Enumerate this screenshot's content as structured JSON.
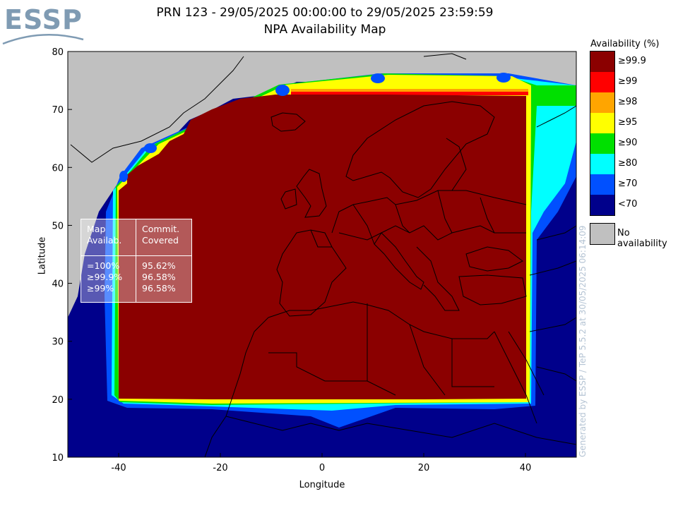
{
  "logo": {
    "text": "ESSP",
    "icon": "essp-logo-swoosh"
  },
  "title": {
    "line1": "PRN 123 - 29/05/2025 00:00:00 to 29/05/2025 23:59:59",
    "line2": "NPA Availability Map"
  },
  "axes": {
    "xlabel": "Longitude",
    "ylabel": "Latitude",
    "xlim": [
      -50,
      50
    ],
    "ylim": [
      10,
      80
    ],
    "xticks": [
      {
        "value": -40,
        "label": "-40"
      },
      {
        "value": -20,
        "label": "-20"
      },
      {
        "value": 0,
        "label": "0"
      },
      {
        "value": 20,
        "label": "20"
      },
      {
        "value": 40,
        "label": "40"
      }
    ],
    "yticks": [
      {
        "value": 10,
        "label": "10"
      },
      {
        "value": 20,
        "label": "20"
      },
      {
        "value": 30,
        "label": "30"
      },
      {
        "value": 40,
        "label": "40"
      },
      {
        "value": 50,
        "label": "50"
      },
      {
        "value": 60,
        "label": "60"
      },
      {
        "value": 70,
        "label": "70"
      },
      {
        "value": 80,
        "label": "80"
      }
    ]
  },
  "legend": {
    "title": "Availability (%)",
    "items": [
      {
        "label": "≥99.9",
        "color": "#8b0000"
      },
      {
        "label": "≥99",
        "color": "#ff0000"
      },
      {
        "label": "≥98",
        "color": "#ffa500"
      },
      {
        "label": "≥95",
        "color": "#ffff00"
      },
      {
        "label": "≥90",
        "color": "#00e000"
      },
      {
        "label": "≥80",
        "color": "#00ffff"
      },
      {
        "label": "≥70",
        "color": "#0050ff"
      },
      {
        "label": "<70",
        "color": "#00008b"
      }
    ],
    "no_availability": {
      "label": "No availability",
      "color": "#c0c0c0"
    }
  },
  "map_regions": {
    "service_area_core": {
      "lon": [
        -41,
        40
      ],
      "lat": [
        20,
        72
      ],
      "level": "≥99.9"
    },
    "outer_band_east_lon": 44,
    "no_availability_zone": "Greenland / northwest Atlantic"
  },
  "stats": {
    "header_left": "Map\nAvailab.",
    "header_right": "Commit.\nCovered",
    "rows_left": "=100%\n≥99.9%\n≥99%",
    "rows_right": "95.62%\n96.58%\n96.58%"
  },
  "footer": {
    "generated": "Generated by ESSP / TeP 5.5.2 at 30/05/2025 06:14:09"
  }
}
